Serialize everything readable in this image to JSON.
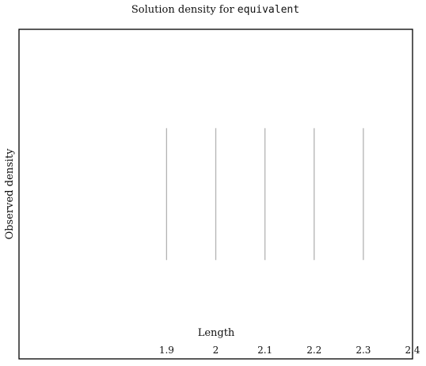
{
  "chart_data": {
    "type": "line",
    "title_prefix": "Solution density for ",
    "title_code": "equivalent",
    "xlabel": "Length",
    "ylabel": "Observed density",
    "xlim": [
      1.6,
      2.4
    ],
    "ylim": [
      0,
      1
    ],
    "x_ticks": [
      1.9,
      2,
      2.1,
      2.2,
      2.3,
      2.4
    ],
    "x_tick_labels": [
      "1.9",
      "2",
      "2.1",
      "2.2",
      "2.3",
      "2.4"
    ],
    "lines": [
      {
        "x": 1.9,
        "y0": 0.3,
        "y1": 0.7
      },
      {
        "x": 2.0,
        "y0": 0.3,
        "y1": 0.7
      },
      {
        "x": 2.1,
        "y0": 0.3,
        "y1": 0.7
      },
      {
        "x": 2.2,
        "y0": 0.3,
        "y1": 0.7
      },
      {
        "x": 2.3,
        "y0": 0.3,
        "y1": 0.7
      }
    ],
    "line_color": "#b3b3b3",
    "grid": false,
    "legend": "none"
  }
}
